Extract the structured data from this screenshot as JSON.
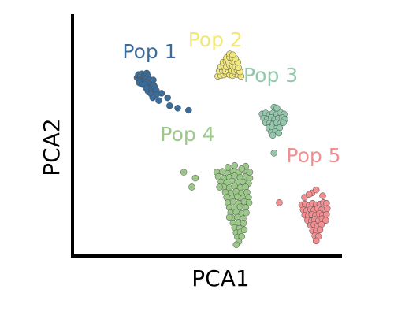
{
  "chart_data": {
    "type": "scatter",
    "xlabel": "PCA1",
    "ylabel": "PCA2",
    "xlim": [
      0,
      100
    ],
    "ylim": [
      0,
      100
    ],
    "series": [
      {
        "name": "Pop 1",
        "color": "#3a6d9c",
        "x": [
          20.0,
          20.5,
          21.3,
          21.9,
          22.6,
          23.2,
          23.8,
          24.4,
          21.0,
          22.1,
          23.4,
          24.7,
          20.9,
          22.2,
          23.6,
          25.0,
          26.4,
          24.0,
          25.3,
          26.6,
          22.9,
          24.8,
          27.1,
          24.3,
          25.8,
          27.6,
          23.6,
          25.6,
          27.6,
          29.7,
          26.2,
          28.6,
          32.1,
          32.9,
          36.1,
          40.4
        ],
        "y": [
          73.8,
          75.1,
          74.4,
          75.4,
          73.8,
          74.7,
          75.7,
          74.4,
          72.5,
          72.2,
          73.1,
          72.8,
          71.6,
          70.9,
          71.9,
          71.3,
          72.8,
          70.3,
          69.7,
          70.6,
          71.0,
          69.1,
          69.7,
          68.1,
          67.5,
          68.4,
          69.4,
          66.9,
          66.6,
          67.2,
          65.3,
          64.1,
          65.3,
          61.9,
          60.9,
          60.0
        ]
      },
      {
        "name": "Pop 2",
        "color": "#f1e77c",
        "x": [
          52.0,
          53.2,
          54.4,
          55.5,
          56.7,
          57.9,
          59.0,
          60.2,
          61.2,
          52.6,
          53.8,
          55.0,
          56.2,
          57.3,
          58.5,
          59.7,
          60.8,
          53.2,
          54.4,
          55.5,
          56.7,
          57.9,
          59.0,
          60.2,
          54.1,
          55.3,
          56.4,
          57.6,
          58.7,
          59.9,
          55.5,
          56.7,
          57.9,
          59.0,
          56.7,
          57.9
        ],
        "y": [
          74.4,
          74.7,
          75.0,
          75.4,
          75.0,
          74.7,
          75.4,
          75.0,
          74.4,
          76.6,
          76.9,
          76.6,
          77.2,
          76.9,
          76.6,
          76.9,
          76.3,
          78.4,
          78.8,
          78.4,
          79.1,
          78.8,
          78.4,
          78.1,
          80.3,
          80.6,
          80.3,
          80.9,
          80.6,
          80.3,
          82.2,
          82.5,
          82.2,
          81.9,
          83.8,
          83.4
        ]
      },
      {
        "name": "Pop 3",
        "color": "#93c8ad",
        "x": [
          69.6,
          71.0,
          72.5,
          73.9,
          75.4,
          76.8,
          78.3,
          70.2,
          71.7,
          73.2,
          74.6,
          76.1,
          77.5,
          78.7,
          71.0,
          72.5,
          73.9,
          75.4,
          76.8,
          78.0,
          72.2,
          73.6,
          75.1,
          76.5,
          73.3,
          74.8,
          76.2,
          74.3,
          75.4,
          73.8,
          74.3
        ],
        "y": [
          58.4,
          58.8,
          58.1,
          58.8,
          58.4,
          59.1,
          58.4,
          56.6,
          56.3,
          56.9,
          56.3,
          56.6,
          56.9,
          56.3,
          54.7,
          54.4,
          54.1,
          54.7,
          54.4,
          54.7,
          52.5,
          52.8,
          52.2,
          52.5,
          50.6,
          50.9,
          50.3,
          61.3,
          60.9,
          49.4,
          41.9
        ]
      },
      {
        "name": "Pop 4",
        "color": "#9cc98a",
        "x": [
          51.6,
          53.8,
          56.0,
          58.1,
          60.3,
          62.5,
          64.7,
          52.2,
          54.4,
          56.6,
          58.7,
          60.9,
          63.1,
          64.7,
          53.3,
          55.5,
          57.7,
          59.8,
          62.0,
          64.2,
          54.4,
          56.6,
          58.7,
          60.9,
          63.1,
          55.0,
          57.2,
          59.3,
          61.5,
          63.6,
          55.5,
          57.7,
          59.8,
          62.0,
          64.2,
          56.0,
          58.1,
          60.3,
          62.5,
          64.4,
          56.6,
          58.7,
          60.9,
          63.1,
          57.1,
          59.3,
          61.5,
          63.3,
          57.7,
          59.8,
          62.0,
          58.1,
          60.3,
          62.2,
          58.7,
          60.6,
          59.3,
          60.9,
          59.8,
          61.5,
          60.3,
          56.6,
          52.7,
          63.1,
          58.7,
          61.5,
          56.0,
          62.5,
          59.3,
          38.5,
          41.7,
          43.1
        ],
        "y": [
          33.8,
          34.1,
          33.4,
          34.1,
          33.8,
          34.4,
          33.8,
          31.9,
          31.3,
          31.6,
          32.2,
          31.6,
          31.9,
          31.3,
          29.7,
          29.4,
          30.0,
          29.4,
          29.7,
          29.1,
          27.5,
          27.2,
          27.8,
          27.2,
          27.5,
          25.3,
          25.0,
          25.6,
          25.0,
          25.3,
          23.1,
          22.8,
          23.4,
          22.8,
          23.1,
          20.9,
          21.3,
          20.6,
          21.3,
          20.9,
          18.8,
          18.4,
          19.1,
          18.8,
          16.6,
          16.9,
          16.3,
          16.6,
          14.4,
          14.7,
          14.1,
          12.2,
          12.5,
          12.2,
          10.3,
          10.0,
          8.1,
          8.4,
          6.3,
          6.6,
          4.4,
          14.7,
          27.5,
          36.3,
          36.6,
          35.3,
          35.9,
          9.4,
          3.1,
          33.8,
          27.5,
          31.3
        ]
      },
      {
        "name": "Pop 5",
        "color": "#f28f92",
        "x": [
          85.3,
          86.7,
          88.2,
          89.6,
          91.0,
          92.5,
          93.9,
          95.1,
          85.9,
          87.3,
          88.8,
          90.2,
          91.6,
          93.1,
          94.5,
          95.4,
          86.5,
          87.9,
          89.3,
          90.8,
          92.2,
          93.6,
          95.1,
          87.6,
          89.1,
          90.5,
          92.0,
          93.4,
          94.8,
          88.8,
          90.2,
          91.6,
          93.1,
          89.6,
          91.0,
          92.5,
          90.5,
          91.9,
          91.0,
          86.4,
          89.3,
          93.6,
          91.0,
          88.2,
          76.4
        ],
        "y": [
          20.0,
          20.3,
          19.7,
          20.6,
          20.0,
          20.3,
          20.9,
          20.6,
          17.8,
          17.5,
          18.1,
          17.8,
          18.4,
          17.8,
          18.1,
          18.4,
          15.6,
          15.3,
          15.9,
          15.6,
          16.3,
          15.6,
          15.9,
          13.4,
          13.1,
          13.8,
          13.4,
          14.1,
          13.4,
          11.3,
          11.6,
          10.9,
          11.6,
          9.1,
          8.8,
          9.4,
          6.9,
          6.6,
          4.7,
          23.1,
          25.0,
          23.8,
          26.3,
          24.4,
          20.9
        ]
      }
    ],
    "labels": [
      {
        "text": "Pop 1",
        "x": 25,
        "y": 82,
        "color": "#3a6d9c"
      },
      {
        "text": "Pop 2",
        "x": 51,
        "y": 87,
        "color": "#f1e77c"
      },
      {
        "text": "Pop 3",
        "x": 73,
        "y": 72,
        "color": "#93c8ad"
      },
      {
        "text": "Pop 4",
        "x": 40,
        "y": 47,
        "color": "#9cc98a"
      },
      {
        "text": "Pop 5",
        "x": 90,
        "y": 38,
        "color": "#f28f92"
      }
    ]
  }
}
